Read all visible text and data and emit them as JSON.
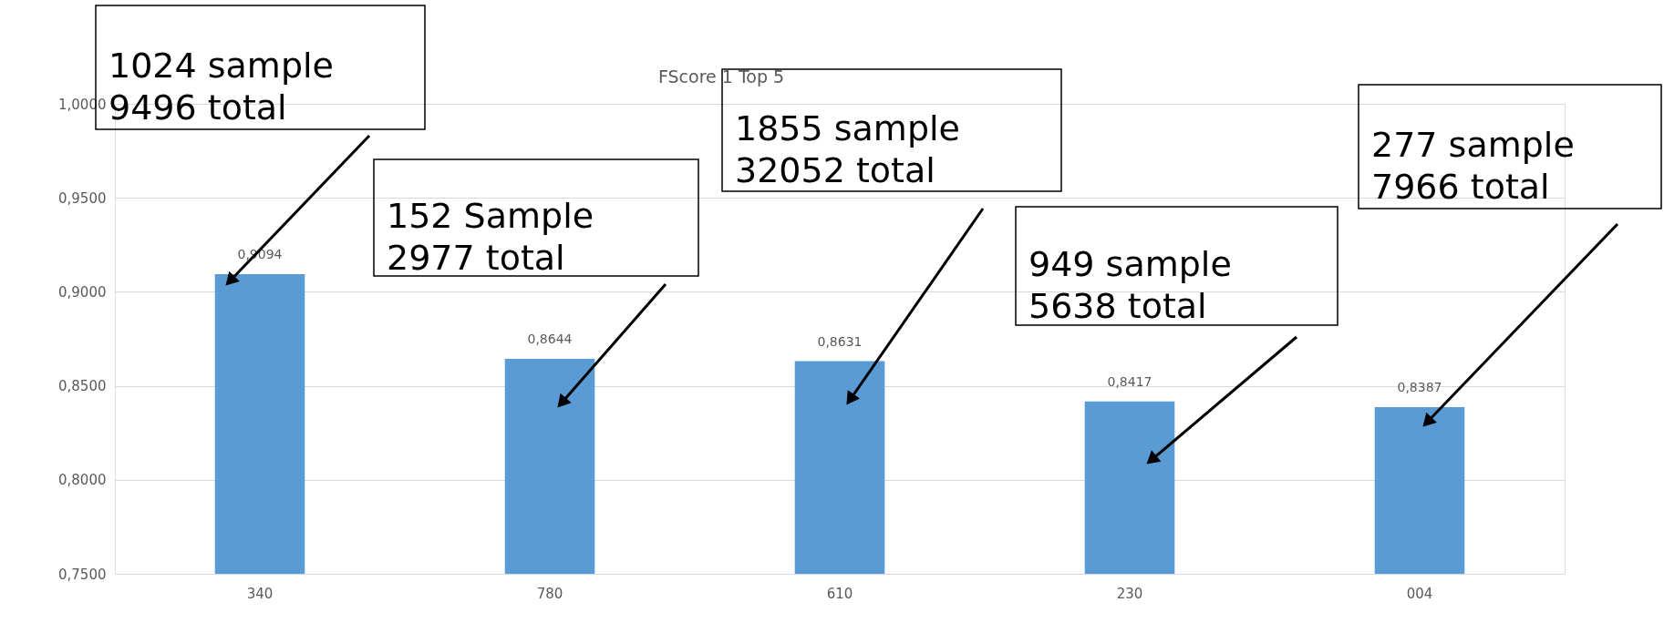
{
  "chart_data": {
    "type": "bar",
    "title": "FScore 1 Top 5",
    "categories": [
      "340",
      "780",
      "610",
      "230",
      "004"
    ],
    "values": [
      0.9094,
      0.8644,
      0.8631,
      0.8417,
      0.8387
    ],
    "color": "#5b9bd5",
    "ylim": [
      0.75,
      1.0
    ],
    "yticks": [
      {
        "value": 0.75,
        "label": "0,7500"
      },
      {
        "value": 0.8,
        "label": "0,8000"
      },
      {
        "value": 0.85,
        "label": "0,8500"
      },
      {
        "value": 0.9,
        "label": "0,9000"
      },
      {
        "value": 0.95,
        "label": "0,9500"
      },
      {
        "value": 1.0,
        "label": "1,0000"
      }
    ],
    "grid": "y",
    "value_labels": [
      "0,9094",
      "0,8644",
      "0,8631",
      "0,8417",
      "0,8387"
    ],
    "annotations": [
      "1024 sample\n9496 total",
      "152 Sample\n2977 total",
      "1855 sample\n32052 total",
      "949 sample\n5638 total",
      "277 sample\n7966 total"
    ]
  }
}
